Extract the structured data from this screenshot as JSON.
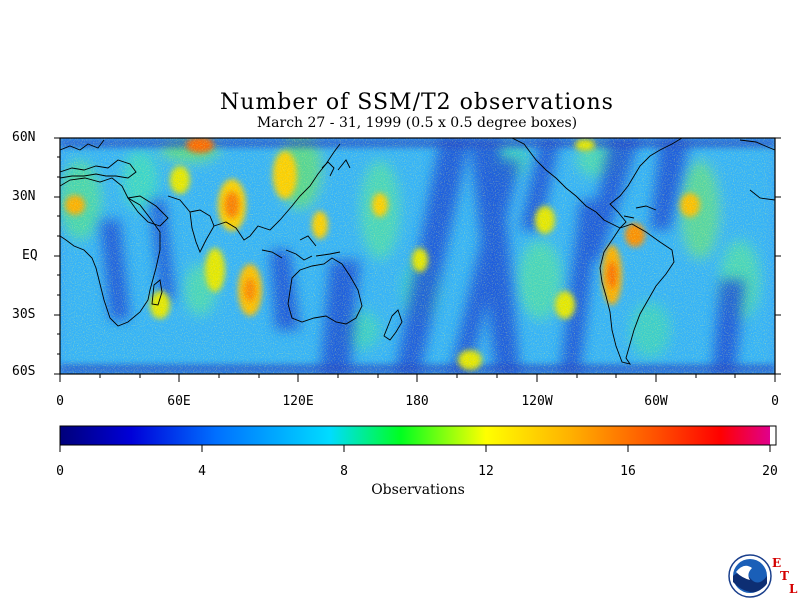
{
  "title": "Number of SSM/T2 observations",
  "subtitle": "March 27 - 31, 1999 (0.5 x 0.5 degree boxes)",
  "lat_labels": [
    "60N",
    "30N",
    "EQ",
    "30S",
    "60S"
  ],
  "lon_labels": [
    "0",
    "60E",
    "120E",
    "180",
    "120W",
    "60W",
    "0"
  ],
  "colorbar": {
    "ticks": [
      "0",
      "4",
      "8",
      "12",
      "16",
      "20"
    ],
    "label": "Observations",
    "range": [
      0,
      20
    ],
    "colors": [
      "#00007a",
      "#0000d8",
      "#0070ff",
      "#00dcff",
      "#00ff20",
      "#ffff00",
      "#ffb000",
      "#ff5000",
      "#ff0000",
      "#e0008c"
    ]
  },
  "map": {
    "lat_range": [
      -60,
      60
    ],
    "lon_range": [
      0,
      360
    ],
    "background_color": "#3aa0ff"
  },
  "logo": {
    "icon": "noaa-logo-icon",
    "etl_letters": [
      "E",
      "T",
      "L"
    ]
  }
}
